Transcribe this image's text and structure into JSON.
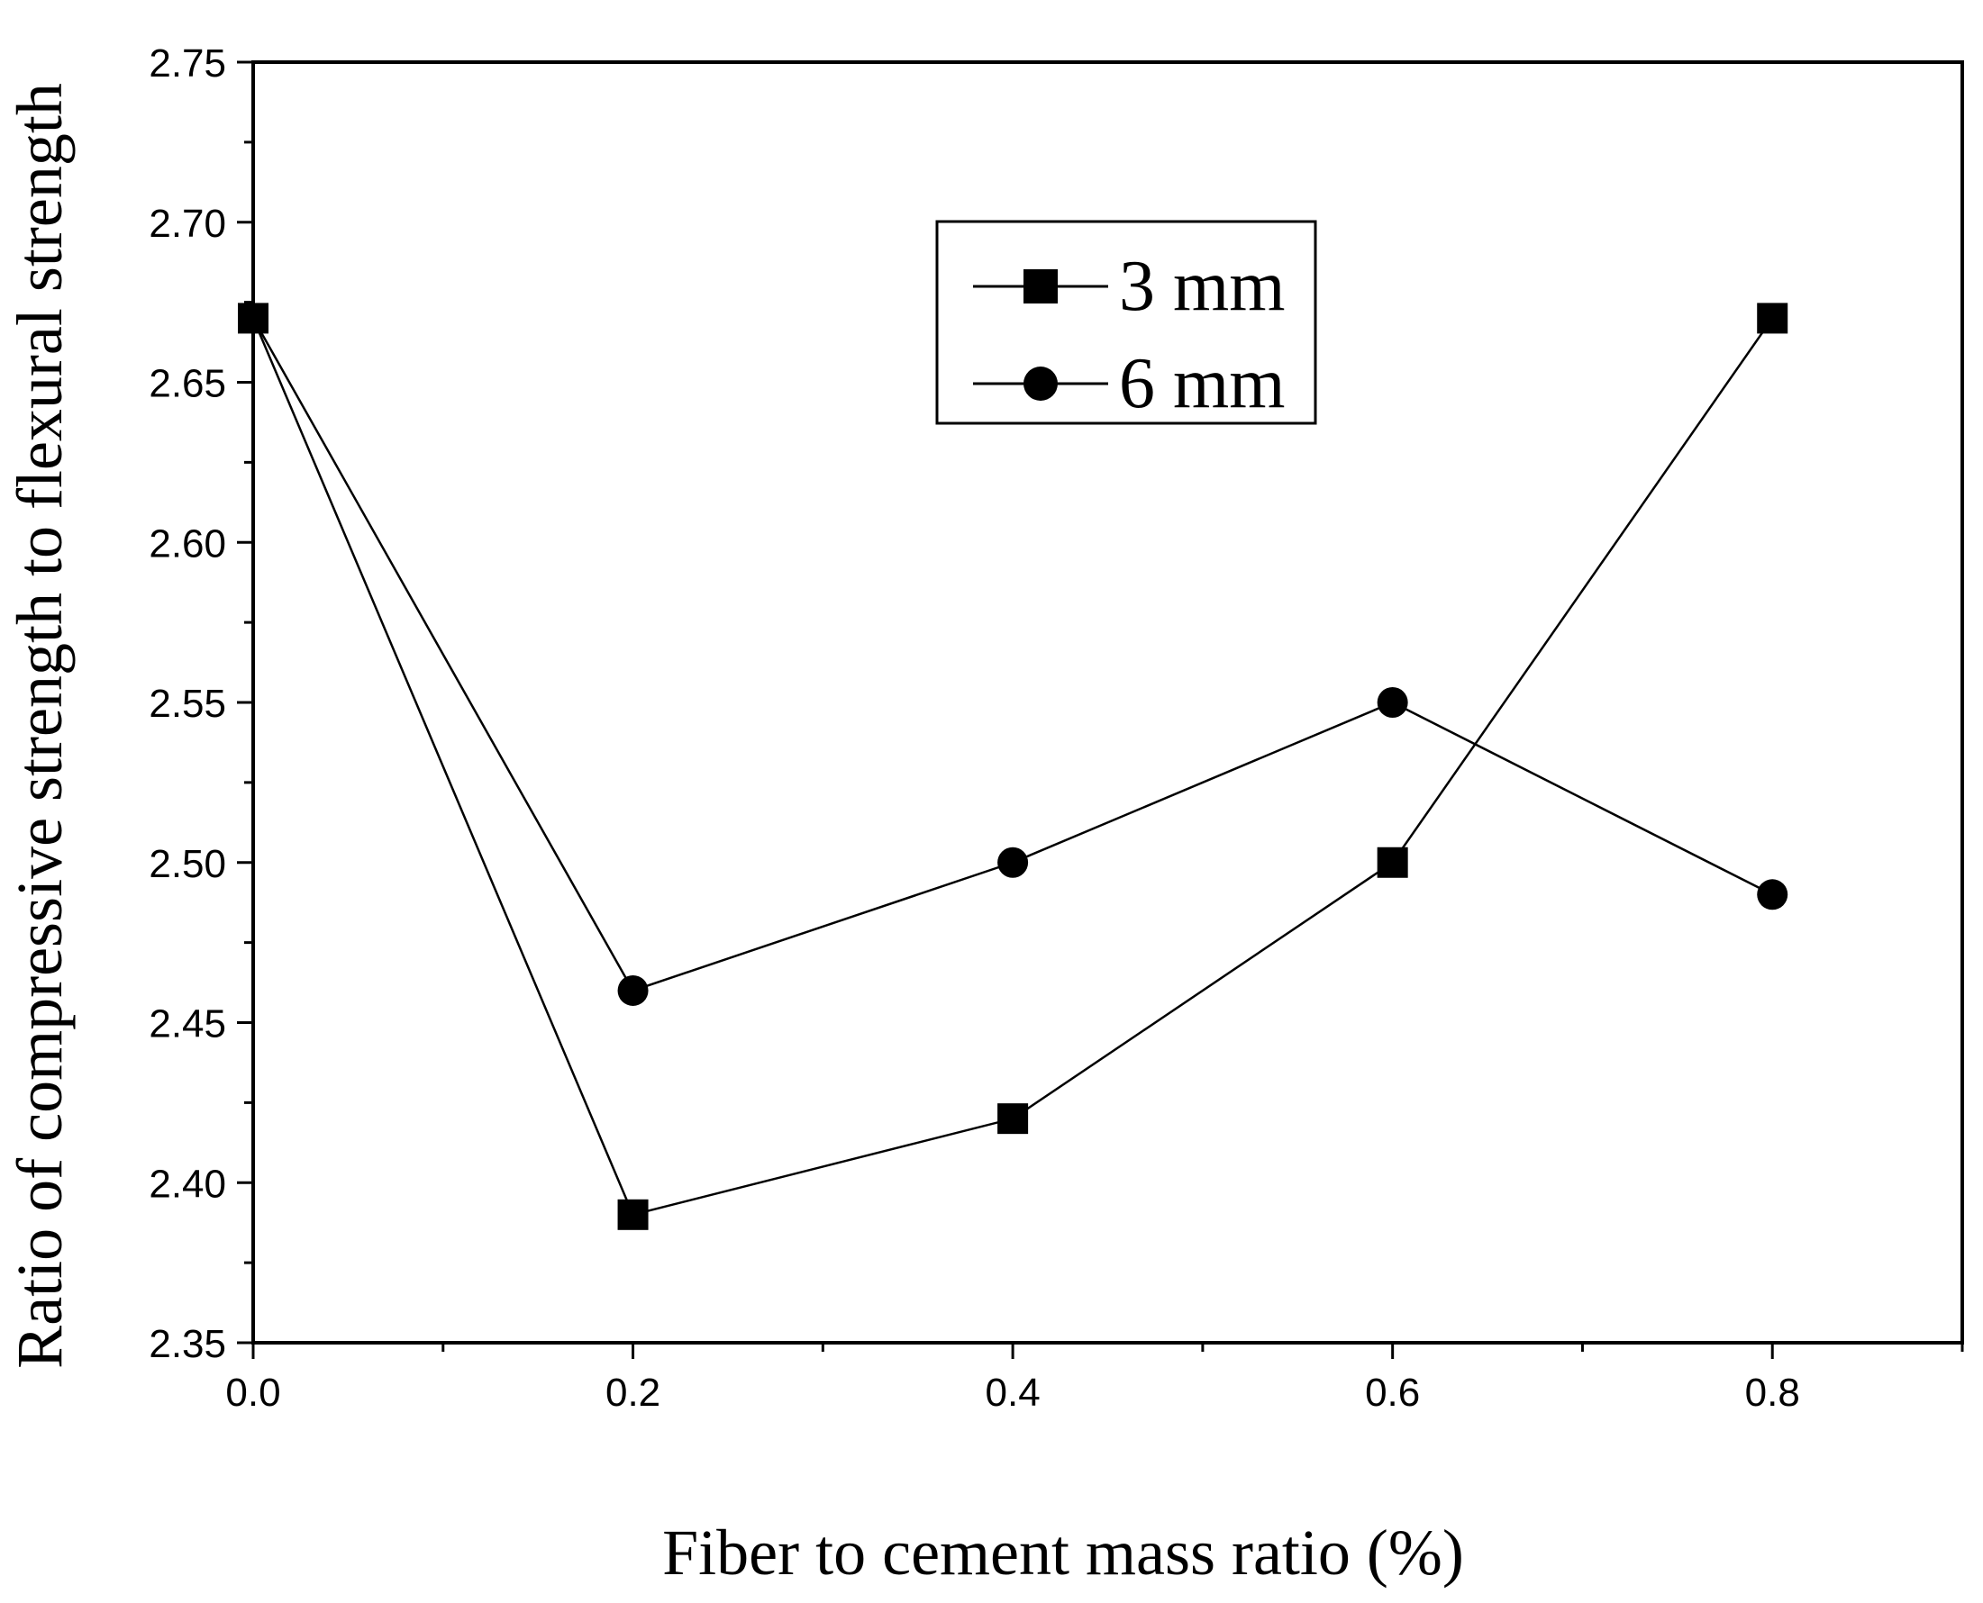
{
  "chart_data": {
    "type": "line",
    "title": "",
    "xlabel": "Fiber to cement mass ratio (%)",
    "ylabel": "Ratio of compressive strength to flexural strength",
    "xlim": [
      0.0,
      0.9
    ],
    "ylim": [
      2.35,
      2.75
    ],
    "x_ticks": [
      0.0,
      0.2,
      0.4,
      0.6,
      0.8
    ],
    "x_tick_labels": [
      "0.0",
      "0.2",
      "0.4",
      "0.6",
      "0.8"
    ],
    "x_minor_ticks": [
      0.1,
      0.3,
      0.5,
      0.7,
      0.9
    ],
    "y_ticks": [
      2.35,
      2.4,
      2.45,
      2.5,
      2.55,
      2.6,
      2.65,
      2.7,
      2.75
    ],
    "y_tick_labels": [
      "2.35",
      "2.40",
      "2.45",
      "2.50",
      "2.55",
      "2.60",
      "2.65",
      "2.70",
      "2.75"
    ],
    "y_minor_ticks": [
      2.375,
      2.425,
      2.475,
      2.525,
      2.575,
      2.625,
      2.675,
      2.725
    ],
    "grid": false,
    "legend_position": "top-center",
    "x": [
      0.0,
      0.2,
      0.4,
      0.6,
      0.8
    ],
    "series": [
      {
        "name": "3 mm",
        "marker": "square",
        "values": [
          2.67,
          2.39,
          2.42,
          2.5,
          2.67
        ]
      },
      {
        "name": "6 mm",
        "marker": "circle",
        "values": [
          2.67,
          2.46,
          2.5,
          2.55,
          2.49
        ]
      }
    ]
  }
}
